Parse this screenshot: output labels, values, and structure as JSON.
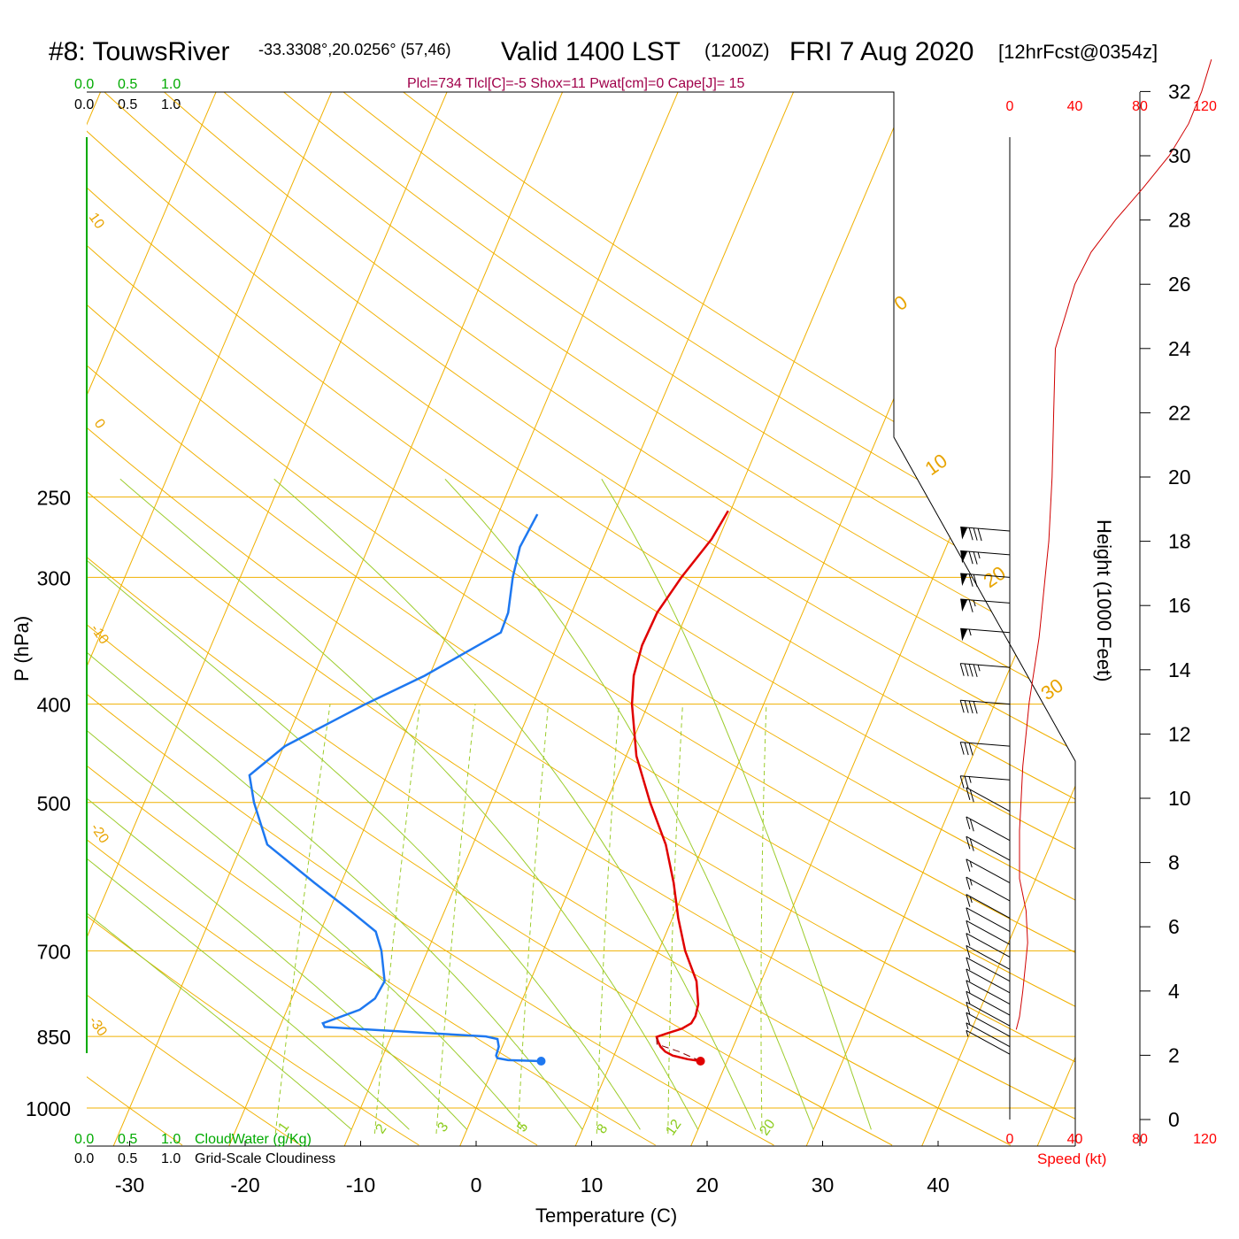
{
  "colors": {
    "isotherm": "#f0b000",
    "isobar": "#f0b000",
    "dry_adiabat": "#f0b000",
    "moist_adiabat": "#9ccc2c",
    "mixing_ratio": "#9ccc2c",
    "temperature": "#e00000",
    "dewpoint": "#1e78f0",
    "title_accent": "#a0004a",
    "cloud_green": "#00aa00",
    "speed_red": "#ff0000"
  },
  "header": {
    "station": "#8: TouwsRiver",
    "coords": "-33.3308°,20.0256° (57,46)",
    "valid": "Valid 1400 LST",
    "zulu": "(1200Z)",
    "date": "FRI 7 Aug 2020",
    "forecast": "[12hrFcst@0354z]"
  },
  "indices_text": "Plcl=734 Tlcl[C]=-5 Shox=11 Pwat[cm]=0 Cape[J]= 15",
  "top_scales": {
    "cloudwater_ticks": [
      "0.0",
      "0.5",
      "1.0"
    ],
    "cloudiness_ticks": [
      "0.0",
      "0.5",
      "1.0"
    ]
  },
  "bottom_scales": {
    "cloudwater_ticks": [
      "0.0",
      "0.5",
      "1.0"
    ],
    "cloudwater_label": "CloudWater (g/Kg)",
    "cloudiness_ticks": [
      "0.0",
      "0.5",
      "1.0"
    ],
    "cloudiness_label": "Grid-Scale Cloudiness"
  },
  "wind_speed_ticks_top": [
    "0",
    "40",
    "80",
    "120"
  ],
  "wind_speed_ticks_bottom": [
    "0",
    "40",
    "80",
    "120"
  ],
  "wind_speed_label": "Speed (kt)",
  "chart_data": {
    "type": "line",
    "title": "#8: TouwsRiver -33.3308°,20.0256° (57,46) Valid 1400 LST (1200Z) FRI 7 Aug 2020 [12hrFcst@0354z]",
    "xlabel": "Temperature (C)",
    "ylabel": "P (hPa)",
    "y2label": "Height (1000 Feet)",
    "x_ticks": [
      -30,
      -20,
      -10,
      0,
      10,
      20,
      30,
      40
    ],
    "y_ticks": [
      250,
      300,
      400,
      500,
      700,
      850,
      1000
    ],
    "y_scale": "log",
    "ylim": [
      1000,
      250
    ],
    "xlim": [
      -34,
      36
    ],
    "height_ticks": [
      0,
      2,
      4,
      6,
      8,
      10,
      12,
      14,
      16,
      18,
      20,
      22,
      24,
      26,
      28,
      30,
      32
    ],
    "isotherm_labels": [
      "0",
      "10",
      "20",
      "30"
    ],
    "dry_adiabat_labels": [
      "10",
      "0",
      "-10",
      "-20",
      "-30"
    ],
    "mixing_ratio_labels": [
      "1",
      "2",
      "3",
      "5",
      "8",
      "12",
      "20"
    ],
    "surface_temperature_c": 17.7,
    "surface_dewpoint_c": 3.9,
    "surface_pressure_hpa": 899,
    "series": [
      {
        "name": "Temperature",
        "points": [
          [
            899,
            17.7
          ],
          [
            895,
            16.5
          ],
          [
            888,
            15.1
          ],
          [
            880,
            14.3
          ],
          [
            870,
            13.7
          ],
          [
            860,
            13.3
          ],
          [
            851,
            13.0
          ],
          [
            845,
            13.7
          ],
          [
            835,
            14.9
          ],
          [
            825,
            15.5
          ],
          [
            812,
            15.6
          ],
          [
            790,
            15.4
          ],
          [
            750,
            14.4
          ],
          [
            700,
            12.3
          ],
          [
            650,
            10.5
          ],
          [
            600,
            8.8
          ],
          [
            550,
            6.7
          ],
          [
            500,
            3.8
          ],
          [
            450,
            0.9
          ],
          [
            400,
            -1.4
          ],
          [
            375,
            -2.3
          ],
          [
            350,
            -2.7
          ],
          [
            325,
            -2.6
          ],
          [
            300,
            -1.8
          ],
          [
            275,
            -0.6
          ],
          [
            258,
            -0.2
          ]
        ]
      },
      {
        "name": "Dewpoint",
        "points": [
          [
            899,
            3.9
          ],
          [
            897,
            1.0
          ],
          [
            893,
            0.0
          ],
          [
            888,
            -0.2
          ],
          [
            870,
            -0.3
          ],
          [
            855,
            -0.7
          ],
          [
            850,
            -1.8
          ],
          [
            832,
            -16.1
          ],
          [
            825,
            -16.4
          ],
          [
            800,
            -13.7
          ],
          [
            780,
            -12.8
          ],
          [
            750,
            -12.6
          ],
          [
            700,
            -14.0
          ],
          [
            670,
            -15.2
          ],
          [
            640,
            -18.1
          ],
          [
            600,
            -22.3
          ],
          [
            550,
            -27.8
          ],
          [
            500,
            -30.5
          ],
          [
            470,
            -31.9
          ],
          [
            440,
            -29.9
          ],
          [
            400,
            -24.5
          ],
          [
            375,
            -20.4
          ],
          [
            355,
            -17.6
          ],
          [
            340,
            -15.4
          ],
          [
            325,
            -15.5
          ],
          [
            300,
            -16.4
          ],
          [
            280,
            -16.9
          ],
          [
            260,
            -16.6
          ]
        ]
      },
      {
        "name": "Parcel",
        "points": [
          [
            899,
            17.7
          ],
          [
            880,
            15.5
          ],
          [
            865,
            13.3
          ],
          [
            851,
            13.0
          ]
        ]
      }
    ],
    "wind_profile": {
      "speed_kt_by_height_kft": [
        [
          2.8,
          4
        ],
        [
          3.2,
          6
        ],
        [
          4.0,
          8
        ],
        [
          5.0,
          10
        ],
        [
          5.5,
          11
        ],
        [
          6.5,
          10
        ],
        [
          7.5,
          6
        ],
        [
          9,
          6
        ],
        [
          10,
          7
        ],
        [
          11,
          8
        ],
        [
          12,
          10
        ],
        [
          13,
          12
        ],
        [
          14,
          15
        ],
        [
          15,
          18
        ],
        [
          16,
          20
        ],
        [
          17,
          22
        ],
        [
          18,
          24
        ],
        [
          20,
          26
        ],
        [
          22,
          27
        ],
        [
          24,
          28
        ],
        [
          25,
          34
        ],
        [
          26,
          40
        ],
        [
          27,
          50
        ],
        [
          28,
          65
        ],
        [
          29,
          82
        ],
        [
          30,
          98
        ],
        [
          31,
          110
        ],
        [
          32,
          118
        ],
        [
          33,
          124
        ]
      ],
      "barbs": [
        {
          "p": 270,
          "speed": 80
        },
        {
          "p": 285,
          "speed": 75
        },
        {
          "p": 300,
          "speed": 70
        },
        {
          "p": 318,
          "speed": 65
        },
        {
          "p": 340,
          "speed": 55
        },
        {
          "p": 368,
          "speed": 45
        },
        {
          "p": 400,
          "speed": 40
        },
        {
          "p": 440,
          "speed": 30
        },
        {
          "p": 475,
          "speed": 25
        },
        {
          "p": 510,
          "speed": 20
        },
        {
          "p": 545,
          "speed": 20
        },
        {
          "p": 570,
          "speed": 20
        },
        {
          "p": 600,
          "speed": 15
        },
        {
          "p": 625,
          "speed": 15
        },
        {
          "p": 650,
          "speed": 15
        },
        {
          "p": 670,
          "speed": 10
        },
        {
          "p": 690,
          "speed": 10
        },
        {
          "p": 710,
          "speed": 10
        },
        {
          "p": 730,
          "speed": 10
        },
        {
          "p": 750,
          "speed": 10
        },
        {
          "p": 770,
          "speed": 10
        },
        {
          "p": 790,
          "speed": 10
        },
        {
          "p": 810,
          "speed": 10
        },
        {
          "p": 830,
          "speed": 10
        },
        {
          "p": 850,
          "speed": 10
        },
        {
          "p": 870,
          "speed": 5
        },
        {
          "p": 885,
          "speed": 5
        }
      ]
    }
  }
}
